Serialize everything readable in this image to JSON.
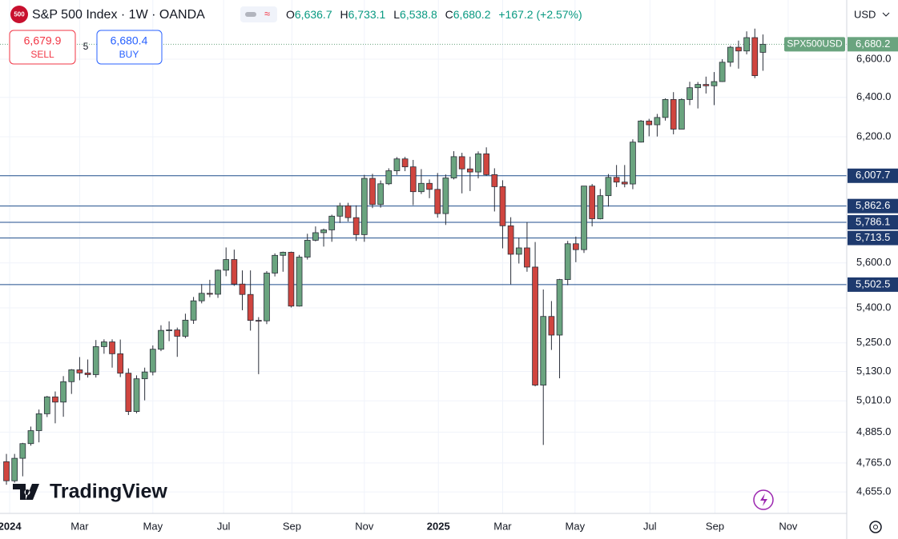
{
  "ui": {
    "badge": "500",
    "title": "S&P 500 Index · 1W · OANDA",
    "ohlc": [
      {
        "key": "O",
        "value": {
          "value": 6636.7,
          "label": "6,636.7"
        }
      },
      {
        "key": "H",
        "value": {
          "value": 6733.1,
          "label": "6,733.1"
        }
      },
      {
        "key": "L",
        "value": {
          "value": 6538.8,
          "label": "6,538.8"
        }
      },
      {
        "key": "C",
        "value": {
          "value": 6680.2,
          "label": "6,680.2"
        }
      }
    ],
    "change": {
      "value": 167.2,
      "label": "+167.2 (+2.57%)"
    },
    "sell": {
      "price": {
        "value": 6679.9,
        "label": "6,679.9"
      },
      "label": "SELL"
    },
    "spread": "5",
    "buy": {
      "price": {
        "value": 6680.4,
        "label": "6,680.4"
      },
      "label": "BUY"
    },
    "currency": "USD",
    "logo": "TradingView"
  },
  "chart_data": {
    "type": "candlestick",
    "log_scale": true,
    "grid": true,
    "up_color": "#6aa47f",
    "down_color": "#d0453f",
    "level_color": "#1f4e8c",
    "symbol": "SPX500USD",
    "last_price": {
      "value": 6680.2,
      "label": "6,680.2"
    },
    "ylim": [
      4575,
      6923
    ],
    "yticks": [
      {
        "value": 6600,
        "label": "6,600.0"
      },
      {
        "value": 6400,
        "label": "6,400.0"
      },
      {
        "value": 6200,
        "label": "6,200.0"
      },
      {
        "value": 5600,
        "label": "5,600.0"
      },
      {
        "value": 5400,
        "label": "5,400.0"
      },
      {
        "value": 5250,
        "label": "5,250.0"
      },
      {
        "value": 5130,
        "label": "5,130.0"
      },
      {
        "value": 5010,
        "label": "5,010.0"
      },
      {
        "value": 4885,
        "label": "4,885.0"
      },
      {
        "value": 4765,
        "label": "4,765.0"
      },
      {
        "value": 4655,
        "label": "4,655.0"
      }
    ],
    "levels": [
      {
        "value": 6007.7,
        "label": "6,007.7"
      },
      {
        "value": 5862.6,
        "label": "5,862.6"
      },
      {
        "value": 5786.1,
        "label": "5,786.1"
      },
      {
        "value": 5713.5,
        "label": "5,713.5"
      },
      {
        "value": 5502.5,
        "label": "5,502.5"
      }
    ],
    "xlim": [
      -0.79,
      103.3
    ],
    "xticks": [
      {
        "value": 0.4,
        "label": "2024"
      },
      {
        "value": 9.0,
        "label": "Mar"
      },
      {
        "value": 18.0,
        "label": "May"
      },
      {
        "value": 26.7,
        "label": "Jul"
      },
      {
        "value": 35.1,
        "label": "Sep"
      },
      {
        "value": 44.0,
        "label": "Nov"
      },
      {
        "value": 53.1,
        "label": "2025"
      },
      {
        "value": 61.0,
        "label": "Mar"
      },
      {
        "value": 69.9,
        "label": "May"
      },
      {
        "value": 79.1,
        "label": "Jul"
      },
      {
        "value": 87.1,
        "label": "Sep"
      },
      {
        "value": 96.1,
        "label": "Nov"
      }
    ],
    "open": [
      4770,
      4697,
      4783,
      4840,
      4891,
      4958,
      5026,
      5005,
      5088,
      5137,
      5124,
      5117,
      5234,
      5254,
      5204,
      5123,
      4967,
      5100,
      5128,
      5223,
      5303,
      5305,
      5278,
      5347,
      5431,
      5464,
      5460,
      5567,
      5615,
      5505,
      5459,
      5346,
      5344,
      5554,
      5634,
      5648,
      5408,
      5626,
      5703,
      5738,
      5751,
      5815,
      5864,
      5808,
      5729,
      5995,
      5870,
      5969,
      6032,
      6090,
      6051,
      5931,
      5971,
      5942,
      5827,
      5997,
      6101,
      6041,
      6026,
      6115,
      6013,
      5955,
      5770,
      5639,
      5668,
      5581,
      5074,
      5363,
      5283,
      5525,
      5687,
      5660,
      5958,
      5803,
      5912,
      6000,
      5977,
      5968,
      6173,
      6279,
      6260,
      6297,
      6389,
      6238,
      6389,
      6450,
      6467,
      6460,
      6482,
      6584,
      6664,
      6644,
      6716,
      6636.7
    ],
    "high": [
      4800,
      4800,
      4843,
      4907,
      4975,
      5030,
      5048,
      5111,
      5140,
      5190,
      5180,
      5262,
      5265,
      5265,
      5264,
      5143,
      5114,
      5146,
      5239,
      5325,
      5342,
      5315,
      5375,
      5448,
      5505,
      5524,
      5570,
      5670,
      5660,
      5566,
      5566,
      5360,
      5563,
      5643,
      5651,
      5651,
      5636,
      5733,
      5767,
      5757,
      5822,
      5878,
      5878,
      5866,
      6012,
      6017,
      5985,
      6044,
      6099,
      6100,
      6085,
      6040,
      5990,
      6021,
      6014,
      6128,
      6120,
      6101,
      6127,
      6147,
      6044,
      5986,
      5810,
      5715,
      5787,
      5695,
      5481,
      5430,
      5528,
      5700,
      5720,
      5958,
      5968,
      5944,
      6016,
      6060,
      6060,
      6187,
      6284,
      6290,
      6315,
      6395,
      6427,
      6395,
      6481,
      6480,
      6508,
      6532,
      6600,
      6672,
      6700,
      6750,
      6765,
      6733.1
    ],
    "low": [
      4682,
      4690,
      4714,
      4832,
      4845,
      4945,
      4920,
      4946,
      5038,
      5094,
      5105,
      5105,
      5204,
      5146,
      5107,
      4953,
      4960,
      5012,
      5114,
      5215,
      5257,
      5191,
      5270,
      5331,
      5420,
      5447,
      5444,
      5540,
      5497,
      5390,
      5302,
      5119,
      5330,
      5539,
      5560,
      5402,
      5406,
      5615,
      5698,
      5674,
      5696,
      5783,
      5790,
      5700,
      5696,
      5853,
      5855,
      5963,
      6012,
      6030,
      5867,
      5920,
      5900,
      5808,
      5774,
      5990,
      5923,
      5934,
      5995,
      6008,
      5837,
      5666,
      5504,
      5597,
      5560,
      5069,
      4835,
      5220,
      5102,
      5500,
      5603,
      5645,
      5767,
      5800,
      5860,
      5953,
      5952,
      5943,
      6171,
      6202,
      6201,
      6281,
      6212,
      6238,
      6360,
      6343,
      6420,
      6360,
      6480,
      6560,
      6550,
      6626,
      6500,
      6538.8
    ],
    "close": [
      4697,
      4783,
      4840,
      4891,
      4958,
      5026,
      5005,
      5088,
      5137,
      5124,
      5117,
      5234,
      5254,
      5204,
      5123,
      4967,
      5100,
      5128,
      5223,
      5303,
      5305,
      5278,
      5347,
      5431,
      5464,
      5460,
      5567,
      5615,
      5505,
      5459,
      5346,
      5344,
      5554,
      5634,
      5648,
      5408,
      5626,
      5703,
      5738,
      5751,
      5815,
      5864,
      5808,
      5729,
      5995,
      5870,
      5969,
      6032,
      6090,
      6051,
      5931,
      5971,
      5942,
      5827,
      5997,
      6101,
      6041,
      6026,
      6115,
      6013,
      5955,
      5770,
      5639,
      5668,
      5581,
      5074,
      5363,
      5283,
      5525,
      5687,
      5660,
      5958,
      5803,
      5912,
      6000,
      5977,
      5968,
      6173,
      6279,
      6260,
      6297,
      6389,
      6238,
      6389,
      6450,
      6467,
      6460,
      6482,
      6584,
      6664,
      6644,
      6716,
      6513,
      6680.2
    ]
  }
}
